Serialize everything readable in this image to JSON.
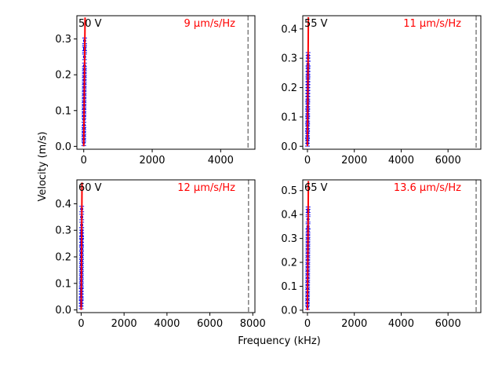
{
  "figure": {
    "xlabel": "Frequency (kHz)",
    "ylabel": "Velocity (m/s)"
  },
  "colors": {
    "fit_line": "#ff0000",
    "data_points": "#0000ff",
    "cutoff_line": "#808080",
    "annotation": "#ff0000"
  },
  "chart_data": [
    {
      "type": "scatter",
      "voltage_label": "50 V",
      "slope_label": "9 µm/s/Hz",
      "xlim": [
        -200,
        5000
      ],
      "ylim": [
        -0.008,
        0.365
      ],
      "xticks": [
        0,
        2000,
        4000
      ],
      "yticks": [
        0.0,
        0.1,
        0.2,
        0.3
      ],
      "ytick_labels": [
        "0.0",
        "0.1",
        "0.2",
        "0.3"
      ],
      "cutoff_x": 4800,
      "fit": {
        "x": [
          0,
          40
        ],
        "y": [
          0.0,
          0.36
        ]
      },
      "points": {
        "x": [
          1,
          2,
          3,
          4,
          5,
          6,
          7,
          8,
          9,
          10,
          11,
          12,
          13,
          14,
          15,
          16,
          17,
          18,
          19,
          20,
          21,
          22,
          23,
          24,
          25,
          26
        ],
        "y": [
          0.01,
          0.02,
          0.03,
          0.04,
          0.05,
          0.06,
          0.075,
          0.085,
          0.095,
          0.105,
          0.115,
          0.125,
          0.135,
          0.145,
          0.155,
          0.165,
          0.175,
          0.185,
          0.195,
          0.205,
          0.215,
          0.225,
          0.25,
          0.27,
          0.275,
          0.295
        ]
      }
    },
    {
      "type": "scatter",
      "voltage_label": "55 V",
      "slope_label": "11 µm/s/Hz",
      "xlim": [
        -200,
        7400
      ],
      "ylim": [
        -0.01,
        0.445
      ],
      "xticks": [
        0,
        2000,
        4000,
        6000
      ],
      "yticks": [
        0.0,
        0.1,
        0.2,
        0.3,
        0.4
      ],
      "ytick_labels": [
        "0.0",
        "0.1",
        "0.2",
        "0.3",
        "0.4"
      ],
      "cutoff_x": 7200,
      "fit": {
        "x": [
          0,
          40
        ],
        "y": [
          0.0,
          0.44
        ]
      },
      "points": {
        "x": [
          1,
          2,
          3,
          4,
          5,
          6,
          7,
          8,
          9,
          10,
          11,
          12,
          13,
          14,
          15,
          16,
          17,
          18,
          19,
          20,
          21,
          22,
          23,
          24,
          25,
          26
        ],
        "y": [
          0.01,
          0.02,
          0.035,
          0.045,
          0.06,
          0.07,
          0.085,
          0.095,
          0.11,
          0.12,
          0.135,
          0.145,
          0.16,
          0.17,
          0.18,
          0.19,
          0.2,
          0.21,
          0.22,
          0.23,
          0.245,
          0.255,
          0.265,
          0.28,
          0.3,
          0.31
        ]
      }
    },
    {
      "type": "scatter",
      "voltage_label": "60 V",
      "slope_label": "12 µm/s/Hz",
      "xlim": [
        -200,
        8100
      ],
      "ylim": [
        -0.01,
        0.49
      ],
      "xticks": [
        0,
        2000,
        4000,
        6000,
        8000
      ],
      "yticks": [
        0.0,
        0.1,
        0.2,
        0.3,
        0.4
      ],
      "ytick_labels": [
        "0.0",
        "0.1",
        "0.2",
        "0.3",
        "0.4"
      ],
      "cutoff_x": 7800,
      "fit": {
        "x": [
          0,
          40
        ],
        "y": [
          0.0,
          0.48
        ]
      },
      "points": {
        "x": [
          1,
          2,
          3,
          4,
          5,
          6,
          7,
          8,
          9,
          10,
          11,
          12,
          13,
          14,
          15,
          16,
          17,
          18,
          19,
          20,
          21,
          22,
          23,
          24,
          25,
          26
        ],
        "y": [
          0.015,
          0.025,
          0.035,
          0.05,
          0.06,
          0.07,
          0.08,
          0.095,
          0.11,
          0.125,
          0.14,
          0.155,
          0.17,
          0.185,
          0.2,
          0.215,
          0.23,
          0.245,
          0.255,
          0.265,
          0.28,
          0.29,
          0.3,
          0.32,
          0.35,
          0.38
        ]
      }
    },
    {
      "type": "scatter",
      "voltage_label": "65 V",
      "slope_label": "13.6 µm/s/Hz",
      "xlim": [
        -200,
        7400
      ],
      "ylim": [
        -0.01,
        0.545
      ],
      "xticks": [
        0,
        2000,
        4000,
        6000
      ],
      "yticks": [
        0.0,
        0.1,
        0.2,
        0.3,
        0.4,
        0.5
      ],
      "ytick_labels": [
        "0.0",
        "0.1",
        "0.2",
        "0.3",
        "0.4",
        "0.5"
      ],
      "cutoff_x": 7200,
      "fit": {
        "x": [
          0,
          40
        ],
        "y": [
          0.0,
          0.54
        ]
      },
      "points": {
        "x": [
          1,
          2,
          3,
          4,
          5,
          6,
          7,
          8,
          9,
          10,
          11,
          12,
          13,
          14,
          15,
          16,
          17,
          18,
          19,
          20,
          21,
          22,
          23,
          24,
          25,
          26
        ],
        "y": [
          0.015,
          0.03,
          0.045,
          0.06,
          0.075,
          0.09,
          0.105,
          0.12,
          0.135,
          0.15,
          0.165,
          0.18,
          0.195,
          0.21,
          0.225,
          0.24,
          0.255,
          0.27,
          0.285,
          0.3,
          0.315,
          0.33,
          0.35,
          0.38,
          0.41,
          0.42
        ]
      }
    }
  ]
}
